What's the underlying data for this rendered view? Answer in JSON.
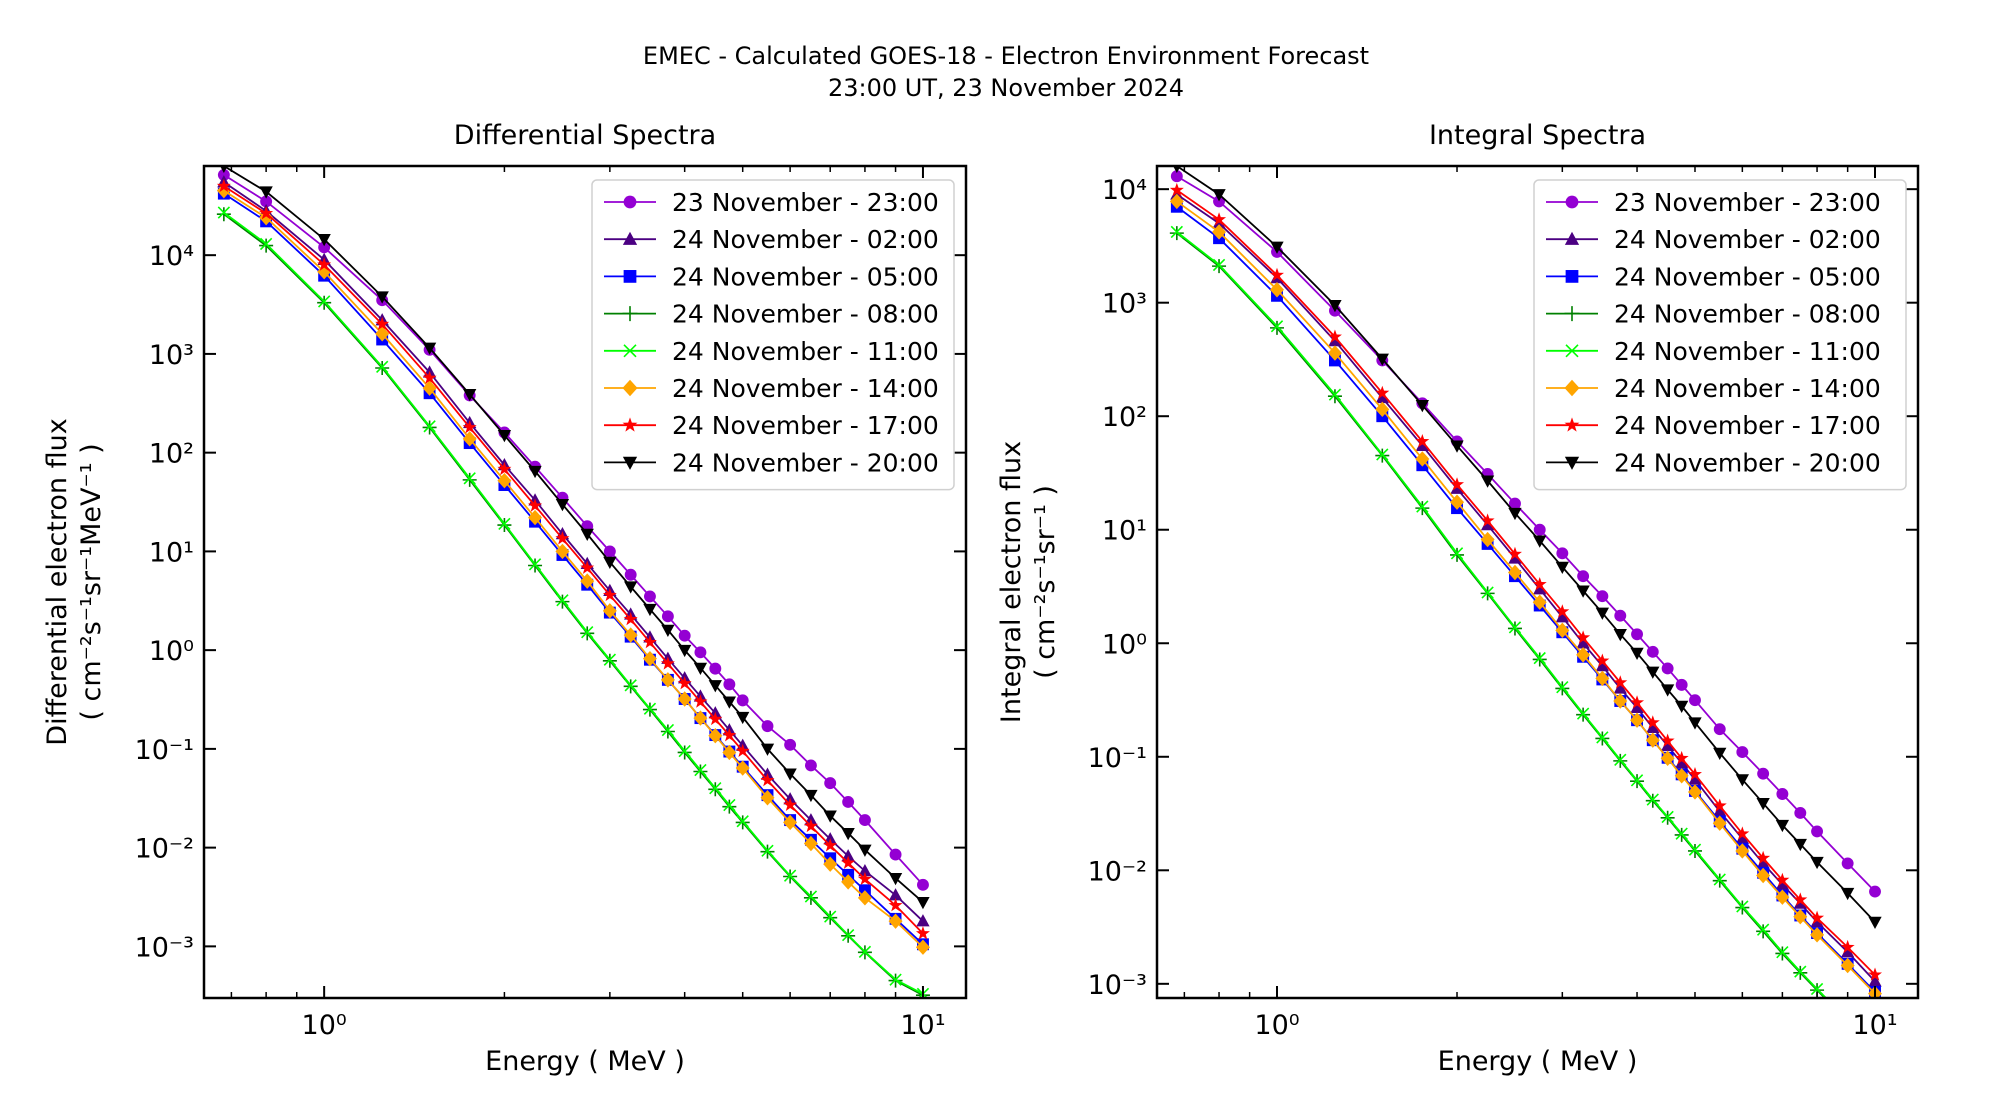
{
  "figure": {
    "title_line1": "EMEC - Calculated GOES-18 - Electron Environment Forecast",
    "title_line2": "23:00 UT, 23 November 2024"
  },
  "chart_data": [
    {
      "type": "line",
      "title": "Differential Spectra",
      "xlabel": "Energy ( MeV )",
      "ylabel": "Differential electron flux",
      "ylabel_units": "( cm⁻²s⁻¹sr⁻¹MeV⁻¹ )",
      "xscale": "log",
      "yscale": "log",
      "xlim": [
        0.63,
        11.8
      ],
      "ylim": [
        0.0003,
        80000
      ],
      "x_ticks": [
        {
          "value": 1,
          "label": "10⁰"
        },
        {
          "value": 10,
          "label": "10¹"
        }
      ],
      "y_ticks": [
        {
          "value": 0.001,
          "label": "10⁻³"
        },
        {
          "value": 0.01,
          "label": "10⁻²"
        },
        {
          "value": 0.1,
          "label": "10⁻¹"
        },
        {
          "value": 1,
          "label": "10⁰"
        },
        {
          "value": 10,
          "label": "10¹"
        },
        {
          "value": 100,
          "label": "10²"
        },
        {
          "value": 1000,
          "label": "10³"
        },
        {
          "value": 10000,
          "label": "10⁴"
        }
      ],
      "grid": false,
      "legend_position": "top-right",
      "x": [
        0.68,
        0.8,
        1.0,
        1.25,
        1.5,
        1.75,
        2.0,
        2.25,
        2.5,
        2.75,
        3.0,
        3.25,
        3.5,
        3.75,
        4.0,
        4.25,
        4.5,
        4.75,
        5.0,
        5.5,
        6.0,
        6.5,
        7.0,
        7.5,
        8.0,
        9.0,
        10.0
      ],
      "series": [
        {
          "name": "23 November - 23:00",
          "color": "#9400D3",
          "marker": "circle",
          "values": [
            65000,
            35000,
            12000,
            3500,
            1100,
            380,
            160,
            72,
            35,
            18,
            10,
            5.8,
            3.5,
            2.2,
            1.4,
            0.95,
            0.65,
            0.45,
            0.31,
            0.17,
            0.11,
            0.068,
            0.045,
            0.029,
            0.019,
            0.0085,
            0.0042
          ]
        },
        {
          "name": "24 November - 02:00",
          "color": "#4B0082",
          "marker": "triangle-up",
          "values": [
            55000,
            28000,
            9000,
            2200,
            650,
            200,
            75,
            33,
            15,
            7.5,
            4.0,
            2.3,
            1.35,
            0.82,
            0.52,
            0.34,
            0.23,
            0.155,
            0.108,
            0.055,
            0.031,
            0.019,
            0.0122,
            0.0082,
            0.0058,
            0.0033,
            0.0018
          ]
        },
        {
          "name": "24 November - 05:00",
          "color": "#0000FF",
          "marker": "square",
          "values": [
            42000,
            22000,
            6200,
            1400,
            400,
            125,
            47,
            20,
            9.2,
            4.6,
            2.4,
            1.37,
            0.8,
            0.5,
            0.32,
            0.205,
            0.138,
            0.094,
            0.066,
            0.034,
            0.019,
            0.012,
            0.0078,
            0.0053,
            0.0037,
            0.0019,
            0.00105
          ]
        },
        {
          "name": "24 November - 08:00",
          "color": "#008000",
          "marker": "plus",
          "values": [
            26000,
            12500,
            3300,
            720,
            180,
            53,
            18.5,
            7.2,
            3.1,
            1.48,
            0.78,
            0.43,
            0.25,
            0.15,
            0.092,
            0.059,
            0.039,
            0.026,
            0.018,
            0.0091,
            0.0051,
            0.0031,
            0.00195,
            0.00128,
            0.00087,
            0.00045,
            0.00032
          ]
        },
        {
          "name": "24 November - 11:00",
          "color": "#00FF00",
          "marker": "x",
          "values": [
            27000,
            13000,
            3400,
            740,
            185,
            55,
            19,
            7.4,
            3.2,
            1.52,
            0.8,
            0.44,
            0.255,
            0.155,
            0.095,
            0.061,
            0.04,
            0.027,
            0.0185,
            0.0093,
            0.0052,
            0.0032,
            0.002,
            0.0013,
            0.00088,
            0.00046,
            0.00033
          ]
        },
        {
          "name": "24 November - 14:00",
          "color": "#FFA500",
          "marker": "diamond",
          "values": [
            45000,
            24000,
            6800,
            1600,
            450,
            138,
            52,
            22,
            10,
            5.0,
            2.5,
            1.42,
            0.82,
            0.5,
            0.32,
            0.205,
            0.136,
            0.092,
            0.064,
            0.032,
            0.018,
            0.011,
            0.0068,
            0.0045,
            0.0031,
            0.0018,
            0.00098
          ]
        },
        {
          "name": "24 November - 17:00",
          "color": "#FF0000",
          "marker": "star",
          "values": [
            50000,
            26500,
            8000,
            2000,
            570,
            180,
            68,
            29,
            13.5,
            6.8,
            3.6,
            2.05,
            1.2,
            0.73,
            0.46,
            0.3,
            0.2,
            0.137,
            0.095,
            0.048,
            0.027,
            0.0165,
            0.0105,
            0.007,
            0.0048,
            0.0026,
            0.00135
          ]
        },
        {
          "name": "24 November - 20:00",
          "color": "#000000",
          "marker": "triangle-down",
          "values": [
            80000,
            44000,
            14500,
            3800,
            1150,
            390,
            150,
            65,
            30,
            15,
            7.8,
            4.4,
            2.6,
            1.6,
            1.0,
            0.66,
            0.44,
            0.3,
            0.21,
            0.1,
            0.056,
            0.034,
            0.021,
            0.014,
            0.0095,
            0.0049,
            0.0028
          ]
        }
      ]
    },
    {
      "type": "line",
      "title": "Integral Spectra",
      "xlabel": "Energy ( MeV )",
      "ylabel": "Integral electron flux",
      "ylabel_units": "( cm⁻²s⁻¹sr⁻¹ )",
      "xscale": "log",
      "yscale": "log",
      "xlim": [
        0.63,
        11.8
      ],
      "ylim": [
        0.00075,
        16000
      ],
      "x_ticks": [
        {
          "value": 1,
          "label": "10⁰"
        },
        {
          "value": 10,
          "label": "10¹"
        }
      ],
      "y_ticks": [
        {
          "value": 0.001,
          "label": "10⁻³"
        },
        {
          "value": 0.01,
          "label": "10⁻²"
        },
        {
          "value": 0.1,
          "label": "10⁻¹"
        },
        {
          "value": 1,
          "label": "10⁰"
        },
        {
          "value": 10,
          "label": "10¹"
        },
        {
          "value": 100,
          "label": "10²"
        },
        {
          "value": 1000,
          "label": "10³"
        },
        {
          "value": 10000,
          "label": "10⁴"
        }
      ],
      "grid": false,
      "legend_position": "top-right",
      "x": [
        0.68,
        0.8,
        1.0,
        1.25,
        1.5,
        1.75,
        2.0,
        2.25,
        2.5,
        2.75,
        3.0,
        3.25,
        3.5,
        3.75,
        4.0,
        4.25,
        4.5,
        4.75,
        5.0,
        5.5,
        6.0,
        6.5,
        7.0,
        7.5,
        8.0,
        9.0,
        10.0
      ],
      "series": [
        {
          "name": "23 November - 23:00",
          "color": "#9400D3",
          "marker": "circle",
          "values": [
            13000,
            7800,
            2800,
            850,
            310,
            130,
            60,
            31,
            17,
            10,
            6.2,
            3.9,
            2.6,
            1.75,
            1.2,
            0.84,
            0.6,
            0.43,
            0.315,
            0.175,
            0.11,
            0.071,
            0.047,
            0.032,
            0.022,
            0.0115,
            0.0065
          ]
        },
        {
          "name": "24 November - 02:00",
          "color": "#4B0082",
          "marker": "triangle-up",
          "values": [
            9000,
            5000,
            1650,
            460,
            145,
            55,
            23,
            11,
            5.6,
            3.0,
            1.7,
            1.0,
            0.63,
            0.4,
            0.27,
            0.18,
            0.125,
            0.088,
            0.063,
            0.033,
            0.019,
            0.0115,
            0.0075,
            0.0051,
            0.0035,
            0.0019,
            0.00105
          ]
        },
        {
          "name": "24 November - 05:00",
          "color": "#0000FF",
          "marker": "square",
          "values": [
            7000,
            3700,
            1150,
            310,
            100,
            37,
            15.5,
            7.5,
            3.9,
            2.15,
            1.25,
            0.76,
            0.48,
            0.31,
            0.21,
            0.14,
            0.098,
            0.07,
            0.05,
            0.027,
            0.0155,
            0.0095,
            0.006,
            0.004,
            0.0028,
            0.0015,
            0.00085
          ]
        },
        {
          "name": "24 November - 08:00",
          "color": "#008000",
          "marker": "plus",
          "values": [
            4100,
            2100,
            600,
            150,
            45,
            15.5,
            6.0,
            2.75,
            1.35,
            0.72,
            0.4,
            0.235,
            0.145,
            0.092,
            0.061,
            0.041,
            0.029,
            0.0205,
            0.0148,
            0.0081,
            0.0047,
            0.0029,
            0.00185,
            0.00125,
            0.00088,
            0.00047,
            0.00033
          ]
        },
        {
          "name": "24 November - 11:00",
          "color": "#00FF00",
          "marker": "x",
          "values": [
            4200,
            2150,
            620,
            155,
            46,
            16,
            6.2,
            2.8,
            1.38,
            0.74,
            0.41,
            0.24,
            0.148,
            0.094,
            0.062,
            0.042,
            0.0295,
            0.021,
            0.0152,
            0.0083,
            0.0048,
            0.003,
            0.0019,
            0.00128,
            0.0009,
            0.00048,
            0.00034
          ]
        },
        {
          "name": "24 November - 14:00",
          "color": "#FFA500",
          "marker": "diamond",
          "values": [
            7800,
            4200,
            1300,
            360,
            115,
            42,
            17.5,
            8.2,
            4.2,
            2.3,
            1.3,
            0.79,
            0.49,
            0.31,
            0.21,
            0.14,
            0.097,
            0.068,
            0.049,
            0.026,
            0.0148,
            0.009,
            0.0058,
            0.0039,
            0.0027,
            0.00145,
            0.00082
          ]
        },
        {
          "name": "24 November - 17:00",
          "color": "#FF0000",
          "marker": "star",
          "values": [
            9800,
            5400,
            1750,
            500,
            160,
            60,
            25,
            12,
            6.1,
            3.3,
            1.9,
            1.12,
            0.7,
            0.45,
            0.3,
            0.2,
            0.138,
            0.097,
            0.07,
            0.037,
            0.021,
            0.0128,
            0.0082,
            0.0055,
            0.0038,
            0.0021,
            0.0012
          ]
        },
        {
          "name": "24 November - 20:00",
          "color": "#000000",
          "marker": "triangle-down",
          "values": [
            16000,
            9000,
            3100,
            950,
            320,
            125,
            55,
            27,
            14,
            8.0,
            4.7,
            2.9,
            1.85,
            1.2,
            0.82,
            0.56,
            0.39,
            0.28,
            0.2,
            0.108,
            0.063,
            0.039,
            0.025,
            0.017,
            0.0118,
            0.0063,
            0.0035
          ]
        }
      ]
    }
  ]
}
